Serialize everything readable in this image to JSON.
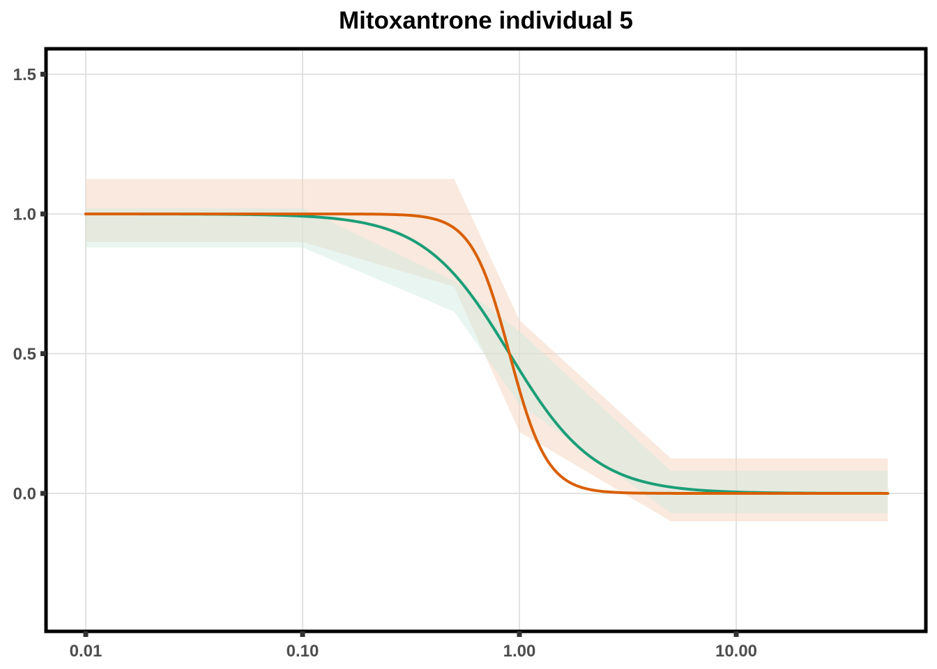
{
  "chart_data": {
    "type": "line",
    "title": "Mitoxantrone individual 5",
    "xlabel": "",
    "ylabel": "",
    "xscale": "log10",
    "xlim": [
      0.01,
      50
    ],
    "ylim": [
      -0.5,
      1.6
    ],
    "grid": true,
    "x_ticks": [
      {
        "value": 0.01,
        "label": "0.01"
      },
      {
        "value": 0.1,
        "label": "0.10"
      },
      {
        "value": 1,
        "label": "1.00"
      },
      {
        "value": 10,
        "label": "10.00"
      }
    ],
    "y_ticks": [
      {
        "value": 0,
        "label": "0.0"
      },
      {
        "value": 0.5,
        "label": "0.5"
      },
      {
        "value": 1,
        "label": "1.0"
      },
      {
        "value": 1.5,
        "label": "1.5"
      }
    ],
    "bands": [
      {
        "name": "orange-band",
        "color": "#f5d3bd",
        "opacity": 0.5,
        "x": [
          0.01,
          0.1,
          0.5,
          1.0,
          5.0,
          50
        ],
        "upper": [
          1.125,
          1.125,
          1.125,
          0.62,
          0.125,
          0.125
        ],
        "lower": [
          0.9,
          0.9,
          0.74,
          0.22,
          -0.1,
          -0.1
        ]
      },
      {
        "name": "teal-band",
        "color": "#cfe8de",
        "opacity": 0.45,
        "x": [
          0.01,
          0.1,
          0.5,
          1.0,
          5.0,
          50
        ],
        "upper": [
          1.02,
          1.02,
          0.76,
          0.58,
          0.08,
          0.08
        ],
        "lower": [
          0.88,
          0.88,
          0.65,
          0.32,
          -0.07,
          -0.07
        ]
      }
    ],
    "series": [
      {
        "name": "teal-curve",
        "color": "#1b9e77",
        "ic50": 0.9,
        "hill": 2.2,
        "x_range": [
          0.01,
          50
        ]
      },
      {
        "name": "orange-curve",
        "color": "#d95f02",
        "ic50": 0.9,
        "hill": 5.0,
        "x_range": [
          0.01,
          50
        ]
      }
    ]
  }
}
